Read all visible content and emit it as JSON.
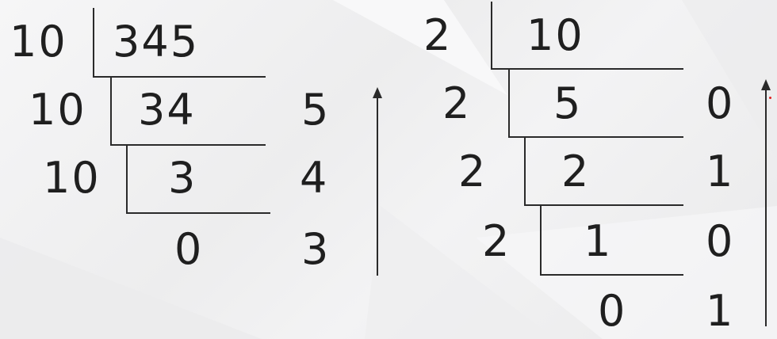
{
  "decimal_division": {
    "rows": [
      {
        "divisor": "10",
        "dividend": "345",
        "remainder": ""
      },
      {
        "divisor": "10",
        "dividend": "34",
        "remainder": "5"
      },
      {
        "divisor": "10",
        "dividend": "3",
        "remainder": "4"
      },
      {
        "divisor": "",
        "dividend": "0",
        "remainder": "3"
      }
    ]
  },
  "binary_division": {
    "rows": [
      {
        "divisor": "2",
        "dividend": "10",
        "remainder": ""
      },
      {
        "divisor": "2",
        "dividend": "5",
        "remainder": "0"
      },
      {
        "divisor": "2",
        "dividend": "2",
        "remainder": "1"
      },
      {
        "divisor": "2",
        "dividend": "1",
        "remainder": "0"
      },
      {
        "divisor": "",
        "dividend": "0",
        "remainder": "1"
      }
    ]
  },
  "colors": {
    "ink": "#1f1f1f",
    "accent_dot": "#d22222"
  }
}
